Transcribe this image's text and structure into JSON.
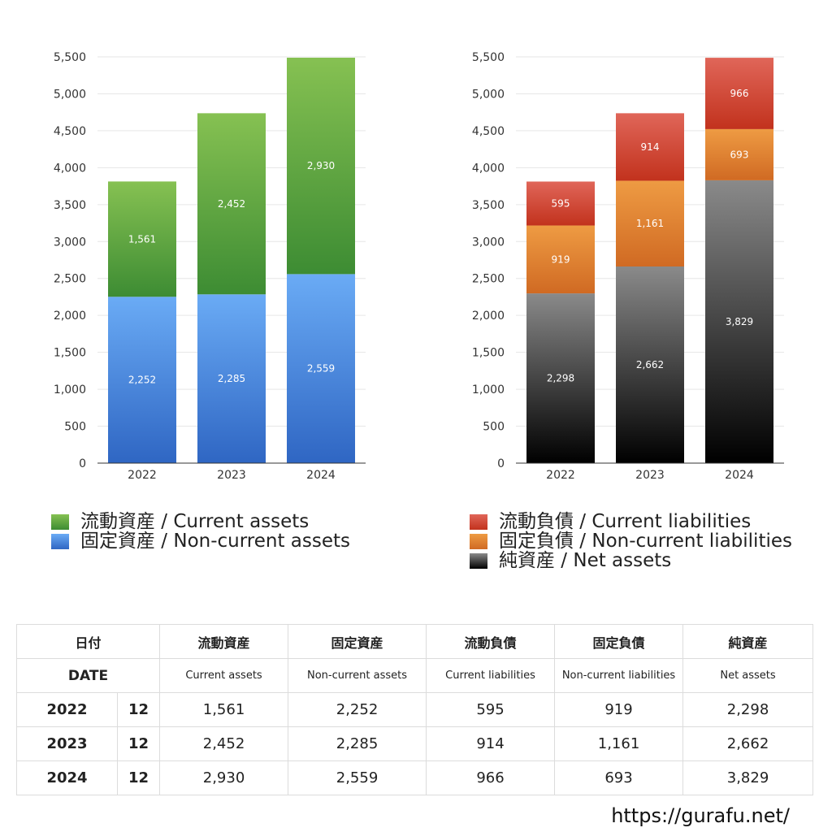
{
  "colors": {
    "current_assets": [
      "#86c152",
      "#3d8c33"
    ],
    "noncurrent_assets": [
      "#6aabf5",
      "#2f66c3"
    ],
    "current_liabilities": [
      "#e06659",
      "#c2321d"
    ],
    "noncurrent_liabilities": [
      "#ee9b43",
      "#d06a23"
    ],
    "net_assets": [
      "#8a8a8a",
      "#000000"
    ]
  },
  "chart_data": [
    {
      "type": "bar",
      "stacked": true,
      "categories": [
        "2022",
        "2023",
        "2024"
      ],
      "yticks": [
        "0",
        "500",
        "1,000",
        "1,500",
        "2,000",
        "2,500",
        "3,000",
        "3,500",
        "4,000",
        "4,500",
        "5,000",
        "5,500"
      ],
      "ylim": [
        0,
        5500
      ],
      "grid": true,
      "series": [
        {
          "name": "固定資産 / Non-current assets",
          "key": "noncurrent_assets",
          "values": [
            2252,
            2285,
            2559
          ],
          "labels": [
            "2,252",
            "2,285",
            "2,559"
          ]
        },
        {
          "name": "流動資産 / Current assets",
          "key": "current_assets",
          "values": [
            1561,
            2452,
            2930
          ],
          "labels": [
            "1,561",
            "2,452",
            "2,930"
          ]
        }
      ]
    },
    {
      "type": "bar",
      "stacked": true,
      "categories": [
        "2022",
        "2023",
        "2024"
      ],
      "yticks": [
        "0",
        "500",
        "1,000",
        "1,500",
        "2,000",
        "2,500",
        "3,000",
        "3,500",
        "4,000",
        "4,500",
        "5,000",
        "5,500"
      ],
      "ylim": [
        0,
        5500
      ],
      "grid": true,
      "series": [
        {
          "name": "純資産 / Net assets",
          "key": "net_assets",
          "values": [
            2298,
            2662,
            3829
          ],
          "labels": [
            "2,298",
            "2,662",
            "3,829"
          ]
        },
        {
          "name": "固定負債 / Non-current liabilities",
          "key": "noncurrent_liabilities",
          "values": [
            919,
            1161,
            693
          ],
          "labels": [
            "919",
            "1,161",
            "693"
          ]
        },
        {
          "name": "流動負債 / Current liabilities",
          "key": "current_liabilities",
          "values": [
            595,
            914,
            966
          ],
          "labels": [
            "595",
            "914",
            "966"
          ]
        }
      ]
    }
  ],
  "legend_left": [
    {
      "label": "流動資産 / Current assets",
      "key": "current_assets"
    },
    {
      "label": "固定資産 / Non-current assets",
      "key": "noncurrent_assets"
    }
  ],
  "legend_right": [
    {
      "label": "流動負債 / Current liabilities",
      "key": "current_liabilities"
    },
    {
      "label": "固定負債 / Non-current liabilities",
      "key": "noncurrent_liabilities"
    },
    {
      "label": "純資産 / Net assets",
      "key": "net_assets"
    }
  ],
  "table": {
    "date_jp": "日付",
    "date_en": "DATE",
    "columns_jp": [
      "流動資産",
      "固定資産",
      "流動負債",
      "固定負債",
      "純資産"
    ],
    "columns_en": [
      "Current assets",
      "Non-current assets",
      "Current liabilities",
      "Non-current liabilities",
      "Net assets"
    ],
    "rows": [
      {
        "year": "2022",
        "month": "12",
        "values": [
          "1,561",
          "2,252",
          "595",
          "919",
          "2,298"
        ]
      },
      {
        "year": "2023",
        "month": "12",
        "values": [
          "2,452",
          "2,285",
          "914",
          "1,161",
          "2,662"
        ]
      },
      {
        "year": "2024",
        "month": "12",
        "values": [
          "2,930",
          "2,559",
          "966",
          "693",
          "3,829"
        ]
      }
    ]
  },
  "credit": "https://gurafu.net/"
}
